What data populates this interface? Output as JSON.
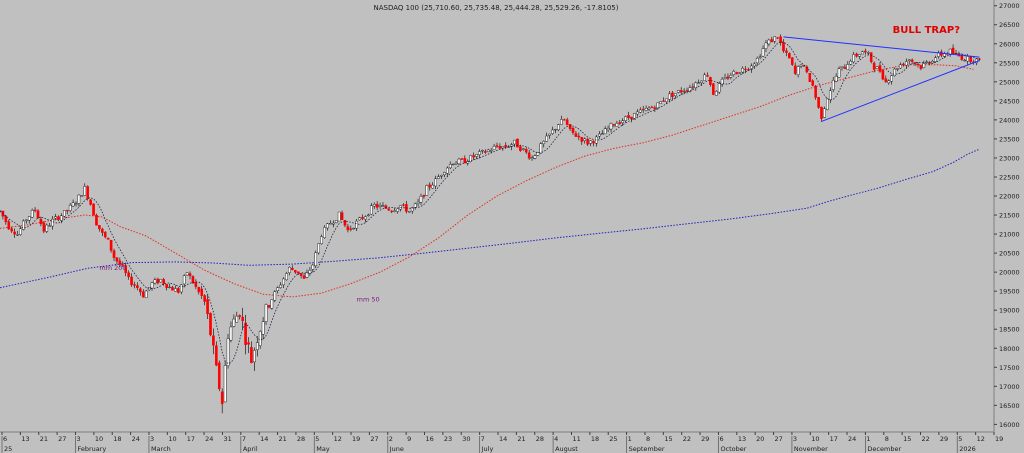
{
  "chart_data": {
    "type": "candlestick",
    "title": "NASDAQ 100 (25,710.60, 25,735.48, 25,444.28, 25,529.26, -17.8105)",
    "annotation": "BULL TRAP?",
    "y_axis": {
      "side": "right",
      "ticks": [
        16000,
        16500,
        17000,
        17500,
        18000,
        18500,
        19000,
        19500,
        20000,
        20500,
        21000,
        21500,
        22000,
        22500,
        23000,
        23500,
        24000,
        24500,
        25000,
        25500,
        26000,
        26500,
        27000
      ],
      "ylim": [
        15800,
        27150
      ]
    },
    "x_axis": {
      "day_ticks": [
        "6",
        "13",
        "21",
        "27",
        "3",
        "10",
        "18",
        "24",
        "3",
        "10",
        "17",
        "24",
        "31",
        "7",
        "14",
        "21",
        "28",
        "5",
        "12",
        "19",
        "27",
        "2",
        "9",
        "16",
        "23",
        "30",
        "7",
        "14",
        "21",
        "28",
        "4",
        "11",
        "18",
        "25",
        "1",
        "8",
        "15",
        "22",
        "29",
        "6",
        "13",
        "20",
        "27",
        "3",
        "10",
        "17",
        "24",
        "1",
        "8",
        "15",
        "22",
        "29",
        "5",
        "12",
        "19"
      ],
      "month_labels": [
        "25",
        "February",
        "March",
        "April",
        "May",
        "June",
        "July",
        "August",
        "September",
        "October",
        "November",
        "December",
        "2026"
      ]
    },
    "colors": {
      "background": "#c0c0c0",
      "up_candle": "#ffffff",
      "down_candle": "#ff0000",
      "ma_short": "#202040",
      "ma50": "#e03020",
      "ma200": "#2020c0",
      "triangle": "#2030ff",
      "annotation": "#e00000",
      "ma_label": "#7a1a7a"
    },
    "series": [
      {
        "name": "mm 200",
        "style": "dotted blue",
        "points": [
          [
            0,
            19590
          ],
          [
            17,
            19870
          ],
          [
            30,
            20100
          ],
          [
            45,
            20250
          ],
          [
            60,
            20270
          ],
          [
            73,
            20240
          ],
          [
            85,
            20180
          ],
          [
            100,
            20210
          ],
          [
            115,
            20290
          ],
          [
            130,
            20380
          ],
          [
            145,
            20500
          ],
          [
            160,
            20630
          ],
          [
            175,
            20760
          ],
          [
            190,
            20900
          ],
          [
            205,
            21020
          ],
          [
            220,
            21140
          ],
          [
            235,
            21270
          ],
          [
            250,
            21400
          ],
          [
            264,
            21540
          ],
          [
            276,
            21680
          ],
          [
            283,
            21850
          ],
          [
            290,
            22000
          ],
          [
            300,
            22200
          ],
          [
            310,
            22440
          ],
          [
            319,
            22640
          ],
          [
            326,
            22880
          ],
          [
            331,
            23100
          ],
          [
            335,
            23230
          ]
        ]
      },
      {
        "name": "mm 50",
        "style": "dotted red",
        "points": [
          [
            0,
            21150
          ],
          [
            10,
            21250
          ],
          [
            20,
            21400
          ],
          [
            29,
            21500
          ],
          [
            35,
            21450
          ],
          [
            41,
            21200
          ],
          [
            50,
            20950
          ],
          [
            60,
            20500
          ],
          [
            70,
            20050
          ],
          [
            80,
            19700
          ],
          [
            90,
            19420
          ],
          [
            100,
            19350
          ],
          [
            110,
            19450
          ],
          [
            120,
            19700
          ],
          [
            130,
            20000
          ],
          [
            140,
            20400
          ],
          [
            150,
            20900
          ],
          [
            160,
            21500
          ],
          [
            170,
            22000
          ],
          [
            180,
            22400
          ],
          [
            190,
            22750
          ],
          [
            200,
            23050
          ],
          [
            210,
            23250
          ],
          [
            220,
            23400
          ],
          [
            230,
            23600
          ],
          [
            240,
            23850
          ],
          [
            250,
            24100
          ],
          [
            260,
            24350
          ],
          [
            270,
            24650
          ],
          [
            280,
            24900
          ],
          [
            290,
            25100
          ],
          [
            300,
            25300
          ],
          [
            310,
            25450
          ],
          [
            320,
            25450
          ],
          [
            327,
            25420
          ],
          [
            333,
            25330
          ]
        ]
      }
    ],
    "ohlc_summary": {
      "trend_points": [
        [
          0,
          21600
        ],
        [
          3,
          21200
        ],
        [
          6,
          21000
        ],
        [
          9,
          21400
        ],
        [
          12,
          21650
        ],
        [
          15,
          21100
        ],
        [
          18,
          21350
        ],
        [
          22,
          21550
        ],
        [
          26,
          21850
        ],
        [
          29,
          22200
        ],
        [
          31,
          21800
        ],
        [
          33,
          21300
        ],
        [
          35,
          21000
        ],
        [
          37,
          20800
        ],
        [
          39,
          20400
        ],
        [
          42,
          20100
        ],
        [
          44,
          19800
        ],
        [
          47,
          19600
        ],
        [
          49,
          19400
        ],
        [
          52,
          19700
        ],
        [
          55,
          19800
        ],
        [
          58,
          19600
        ],
        [
          61,
          19500
        ],
        [
          64,
          20000
        ],
        [
          67,
          19600
        ],
        [
          70,
          19200
        ],
        [
          72,
          18400
        ],
        [
          74,
          17400
        ],
        [
          76,
          16600
        ],
        [
          78,
          18400
        ],
        [
          80,
          18700
        ],
        [
          82,
          19000
        ],
        [
          84,
          18300
        ],
        [
          86,
          17700
        ],
        [
          88,
          18300
        ],
        [
          90,
          18800
        ],
        [
          93,
          19300
        ],
        [
          96,
          19700
        ],
        [
          99,
          20100
        ],
        [
          102,
          20000
        ],
        [
          104,
          19800
        ],
        [
          107,
          20200
        ],
        [
          110,
          21000
        ],
        [
          113,
          21300
        ],
        [
          116,
          21500
        ],
        [
          119,
          21100
        ],
        [
          122,
          21300
        ],
        [
          125,
          21500
        ],
        [
          128,
          21750
        ],
        [
          131,
          21700
        ],
        [
          134,
          21650
        ],
        [
          137,
          21750
        ],
        [
          140,
          21600
        ],
        [
          143,
          21800
        ],
        [
          146,
          22200
        ],
        [
          149,
          22400
        ],
        [
          152,
          22700
        ],
        [
          155,
          22900
        ],
        [
          158,
          22900
        ],
        [
          161,
          23000
        ],
        [
          164,
          23100
        ],
        [
          167,
          23200
        ],
        [
          170,
          23300
        ],
        [
          173,
          23300
        ],
        [
          176,
          23400
        ],
        [
          179,
          23200
        ],
        [
          182,
          23000
        ],
        [
          185,
          23300
        ],
        [
          188,
          23600
        ],
        [
          191,
          23900
        ],
        [
          193,
          24000
        ],
        [
          195,
          23700
        ],
        [
          197,
          23600
        ],
        [
          199,
          23500
        ],
        [
          201,
          23400
        ],
        [
          204,
          23500
        ],
        [
          207,
          23700
        ],
        [
          210,
          23900
        ],
        [
          213,
          24000
        ],
        [
          216,
          24100
        ],
        [
          219,
          24200
        ],
        [
          222,
          24300
        ],
        [
          225,
          24400
        ],
        [
          228,
          24600
        ],
        [
          231,
          24700
        ],
        [
          234,
          24800
        ],
        [
          237,
          24900
        ],
        [
          240,
          25100
        ],
        [
          242,
          25200
        ],
        [
          244,
          24700
        ],
        [
          247,
          25000
        ],
        [
          250,
          25200
        ],
        [
          253,
          25300
        ],
        [
          256,
          25400
        ],
        [
          259,
          25600
        ],
        [
          262,
          26000
        ],
        [
          264,
          26100
        ],
        [
          266,
          26200
        ],
        [
          268,
          25800
        ],
        [
          270,
          25600
        ],
        [
          272,
          25200
        ],
        [
          274,
          25500
        ],
        [
          276,
          25200
        ],
        [
          278,
          24900
        ],
        [
          280,
          24300
        ],
        [
          281,
          24100
        ],
        [
          283,
          24600
        ],
        [
          285,
          25000
        ],
        [
          287,
          25300
        ],
        [
          289,
          25400
        ],
        [
          291,
          25600
        ],
        [
          293,
          25700
        ],
        [
          295,
          25800
        ],
        [
          297,
          25700
        ],
        [
          299,
          25400
        ],
        [
          301,
          25300
        ],
        [
          303,
          25000
        ],
        [
          305,
          25200
        ],
        [
          307,
          25400
        ],
        [
          309,
          25500
        ],
        [
          311,
          25600
        ],
        [
          313,
          25500
        ],
        [
          315,
          25400
        ],
        [
          317,
          25500
        ],
        [
          319,
          25600
        ],
        [
          321,
          25700
        ],
        [
          323,
          25750
        ],
        [
          325,
          25800
        ],
        [
          327,
          25700
        ],
        [
          329,
          25650
        ],
        [
          331,
          25600
        ],
        [
          333,
          25600
        ],
        [
          335,
          25530
        ]
      ]
    }
  }
}
